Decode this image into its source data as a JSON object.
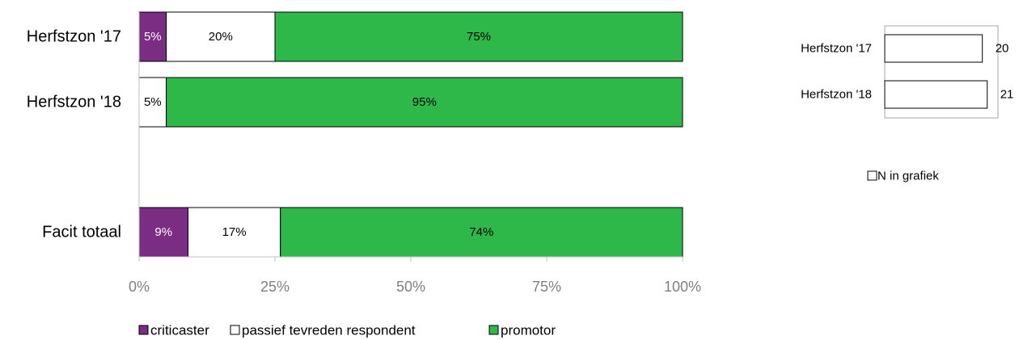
{
  "chart_data": [
    {
      "type": "bar",
      "orientation": "horizontal",
      "stacked": true,
      "categories": [
        "Herfstzon '17",
        "Herfstzon '18",
        "",
        "Facit totaal"
      ],
      "series": [
        {
          "name": "criticaster",
          "values": [
            5,
            0,
            null,
            9
          ],
          "labels": [
            "5%",
            "",
            "",
            "9%"
          ]
        },
        {
          "name": "passief tevreden respondent",
          "values": [
            20,
            5,
            null,
            17
          ],
          "labels": [
            "20%",
            "5%",
            "",
            "17%"
          ]
        },
        {
          "name": "promotor",
          "values": [
            75,
            95,
            null,
            74
          ],
          "labels": [
            "75%",
            "95%",
            "",
            "74%"
          ]
        }
      ],
      "xlim": [
        0,
        100
      ],
      "xticks": [
        0,
        25,
        50,
        75,
        100
      ],
      "xtick_labels": [
        "0%",
        "25%",
        "50%",
        "75%",
        "100%"
      ],
      "legend_position": "bottom",
      "grid": false
    },
    {
      "type": "bar",
      "orientation": "horizontal",
      "categories": [
        "Herfstzon '17",
        "Herfstzon '18"
      ],
      "series": [
        {
          "name": "N in grafiek",
          "values": [
            20,
            21
          ]
        }
      ],
      "legend_position": "bottom",
      "grid": false
    }
  ],
  "colors": {
    "criticaster": "#7b2c83",
    "passief tevreden respondent": "#ffffff",
    "promotor": "#2fb84a"
  }
}
